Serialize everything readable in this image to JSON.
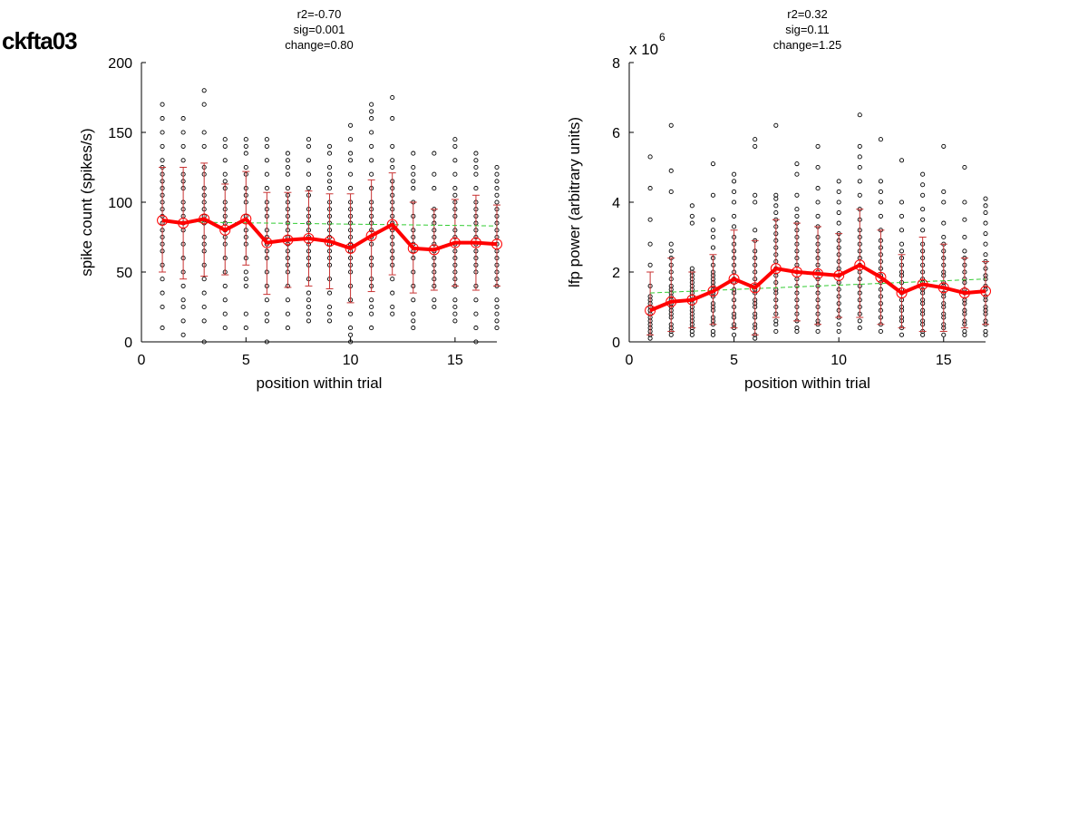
{
  "figure_title": "ckfta03",
  "colors": {
    "mean_line": "#ff0000",
    "errorbar": "#c83232",
    "trend": "#33cc33",
    "points": "#000000"
  },
  "chart_data": [
    {
      "type": "scatter",
      "stats": [
        "r2=-0.70",
        "sig=0.001",
        "change=0.80"
      ],
      "xlabel": "position within trial",
      "ylabel": "spike count (spikes/s)",
      "exponent_label": "",
      "xlim": [
        0,
        17
      ],
      "ylim": [
        0,
        200
      ],
      "xticks": [
        0,
        5,
        10,
        15
      ],
      "yticks": [
        0,
        50,
        100,
        150,
        200
      ],
      "x": [
        1,
        2,
        3,
        4,
        5,
        6,
        7,
        8,
        9,
        10,
        11,
        12,
        13,
        14,
        15,
        16,
        17
      ],
      "mean": [
        87,
        85,
        88,
        80,
        88,
        71,
        73,
        74,
        72,
        67,
        76,
        84,
        67,
        66,
        71,
        71,
        70
      ],
      "err_lo": [
        50,
        45,
        47,
        48,
        55,
        34,
        39,
        40,
        38,
        28,
        36,
        48,
        35,
        37,
        40,
        37,
        40
      ],
      "err_hi": [
        125,
        125,
        128,
        113,
        122,
        107,
        107,
        108,
        106,
        106,
        116,
        121,
        100,
        95,
        102,
        105,
        98
      ],
      "trend": [
        86,
        83
      ],
      "points": [
        [
          10,
          25,
          35,
          45,
          55,
          65,
          70,
          75,
          80,
          85,
          90,
          95,
          100,
          105,
          110,
          115,
          120,
          125,
          130,
          140,
          150,
          160,
          170
        ],
        [
          5,
          15,
          25,
          30,
          40,
          50,
          60,
          70,
          80,
          85,
          90,
          95,
          100,
          110,
          115,
          120,
          130,
          140,
          150,
          160
        ],
        [
          0,
          15,
          25,
          35,
          45,
          55,
          65,
          70,
          75,
          85,
          90,
          95,
          100,
          105,
          110,
          120,
          125,
          140,
          150,
          170,
          180
        ],
        [
          10,
          20,
          30,
          40,
          50,
          60,
          70,
          75,
          80,
          85,
          90,
          95,
          100,
          110,
          115,
          120,
          130,
          140,
          145
        ],
        [
          10,
          20,
          40,
          45,
          50,
          60,
          70,
          75,
          80,
          90,
          100,
          105,
          110,
          120,
          125,
          135,
          140,
          145
        ],
        [
          0,
          15,
          20,
          30,
          40,
          50,
          60,
          65,
          70,
          75,
          80,
          90,
          95,
          100,
          110,
          120,
          130,
          140,
          145
        ],
        [
          10,
          20,
          30,
          40,
          50,
          55,
          60,
          65,
          70,
          75,
          80,
          85,
          90,
          95,
          100,
          105,
          110,
          120,
          125,
          130,
          135
        ],
        [
          15,
          20,
          25,
          30,
          35,
          45,
          55,
          60,
          65,
          70,
          75,
          80,
          85,
          90,
          95,
          105,
          110,
          120,
          130,
          140,
          145
        ],
        [
          15,
          20,
          25,
          35,
          45,
          55,
          60,
          65,
          70,
          75,
          80,
          85,
          90,
          95,
          100,
          110,
          115,
          120,
          125,
          135,
          140
        ],
        [
          0,
          5,
          10,
          20,
          30,
          40,
          50,
          55,
          60,
          65,
          70,
          75,
          80,
          85,
          90,
          95,
          100,
          110,
          120,
          130,
          135,
          145,
          155
        ],
        [
          10,
          20,
          25,
          30,
          40,
          45,
          55,
          60,
          70,
          75,
          80,
          85,
          90,
          95,
          100,
          110,
          120,
          130,
          140,
          150,
          160,
          165,
          170
        ],
        [
          20,
          25,
          35,
          45,
          55,
          60,
          65,
          70,
          75,
          80,
          85,
          90,
          95,
          100,
          105,
          110,
          115,
          125,
          130,
          140,
          160,
          175
        ],
        [
          10,
          15,
          20,
          30,
          40,
          50,
          60,
          65,
          70,
          75,
          80,
          90,
          100,
          110,
          115,
          120,
          125,
          135
        ],
        [
          25,
          30,
          40,
          45,
          50,
          55,
          60,
          65,
          70,
          75,
          80,
          85,
          90,
          95,
          110,
          120,
          135
        ],
        [
          15,
          20,
          25,
          30,
          40,
          45,
          50,
          55,
          60,
          65,
          70,
          75,
          80,
          90,
          95,
          100,
          105,
          110,
          120,
          130,
          140,
          145
        ],
        [
          0,
          10,
          20,
          30,
          40,
          50,
          55,
          60,
          65,
          70,
          75,
          80,
          85,
          90,
          95,
          100,
          110,
          120,
          125,
          130,
          135
        ],
        [
          10,
          15,
          20,
          25,
          30,
          40,
          45,
          50,
          55,
          60,
          65,
          70,
          75,
          80,
          85,
          90,
          95,
          100,
          105,
          110,
          115,
          120,
          125
        ]
      ]
    },
    {
      "type": "scatter",
      "stats": [
        "r2=0.32",
        "sig=0.11",
        "change=1.25"
      ],
      "xlabel": "position within trial",
      "ylabel": "lfp power (arbitrary units)",
      "exponent_label": "x 10",
      "exponent_power": "6",
      "xlim": [
        0,
        17
      ],
      "ylim": [
        0,
        8
      ],
      "xticks": [
        0,
        5,
        10,
        15
      ],
      "yticks": [
        0,
        2,
        4,
        6,
        8
      ],
      "x": [
        1,
        2,
        3,
        4,
        5,
        6,
        7,
        8,
        9,
        10,
        11,
        12,
        13,
        14,
        15,
        16,
        17
      ],
      "mean": [
        0.9,
        1.15,
        1.2,
        1.45,
        1.8,
        1.55,
        2.1,
        2.0,
        1.95,
        1.9,
        2.2,
        1.85,
        1.4,
        1.65,
        1.55,
        1.4,
        1.45
      ],
      "err_lo": [
        0.2,
        0.3,
        0.4,
        0.5,
        0.4,
        0.2,
        0.7,
        0.6,
        0.5,
        0.7,
        0.7,
        0.5,
        0.4,
        0.3,
        0.3,
        0.4,
        0.5
      ],
      "err_hi": [
        2.0,
        2.4,
        2.0,
        2.5,
        3.2,
        2.9,
        3.5,
        3.4,
        3.3,
        3.1,
        3.8,
        3.2,
        2.5,
        3.0,
        2.8,
        2.4,
        2.3
      ],
      "trend": [
        1.4,
        1.8
      ],
      "points": [
        [
          0.1,
          0.2,
          0.3,
          0.4,
          0.5,
          0.6,
          0.7,
          0.8,
          0.9,
          1.0,
          1.1,
          1.2,
          1.3,
          1.6,
          2.2,
          2.8,
          3.5,
          4.4,
          5.3
        ],
        [
          0.2,
          0.3,
          0.4,
          0.5,
          0.7,
          0.8,
          0.9,
          1.0,
          1.1,
          1.2,
          1.3,
          1.4,
          1.5,
          1.6,
          1.8,
          2.0,
          2.2,
          2.4,
          2.6,
          2.8,
          4.3,
          4.9,
          6.2
        ],
        [
          0.2,
          0.3,
          0.4,
          0.5,
          0.6,
          0.7,
          0.8,
          0.9,
          1.0,
          1.1,
          1.2,
          1.3,
          1.4,
          1.5,
          1.6,
          1.7,
          1.8,
          1.9,
          2.0,
          2.1,
          3.4,
          3.6,
          3.9
        ],
        [
          0.2,
          0.3,
          0.5,
          0.6,
          0.7,
          0.9,
          1.0,
          1.1,
          1.3,
          1.4,
          1.5,
          1.6,
          1.7,
          1.8,
          1.9,
          2.0,
          2.2,
          2.4,
          2.7,
          3.0,
          3.2,
          3.5,
          4.2,
          5.1
        ],
        [
          0.2,
          0.4,
          0.5,
          0.7,
          0.8,
          1.0,
          1.2,
          1.4,
          1.5,
          1.7,
          1.8,
          2.0,
          2.2,
          2.4,
          2.6,
          2.8,
          3.0,
          3.3,
          3.6,
          4.0,
          4.3,
          4.6,
          4.8
        ],
        [
          0.1,
          0.2,
          0.4,
          0.5,
          0.7,
          0.8,
          1.0,
          1.1,
          1.2,
          1.4,
          1.5,
          1.6,
          1.8,
          2.0,
          2.2,
          2.4,
          2.6,
          2.9,
          3.2,
          4.0,
          4.2,
          5.6,
          5.8
        ],
        [
          0.3,
          0.5,
          0.6,
          0.8,
          1.0,
          1.2,
          1.4,
          1.5,
          1.7,
          1.9,
          2.1,
          2.3,
          2.5,
          2.7,
          2.9,
          3.1,
          3.3,
          3.5,
          3.7,
          3.9,
          4.1,
          4.2,
          6.2
        ],
        [
          0.3,
          0.4,
          0.6,
          0.8,
          1.0,
          1.2,
          1.4,
          1.6,
          1.8,
          2.0,
          2.2,
          2.4,
          2.6,
          2.8,
          3.0,
          3.2,
          3.4,
          3.6,
          3.8,
          4.2,
          4.8,
          5.1
        ],
        [
          0.3,
          0.5,
          0.6,
          0.8,
          1.0,
          1.2,
          1.4,
          1.6,
          1.8,
          2.0,
          2.2,
          2.4,
          2.6,
          2.8,
          3.0,
          3.3,
          3.6,
          4.0,
          4.4,
          5.0,
          5.6
        ],
        [
          0.3,
          0.5,
          0.7,
          0.9,
          1.1,
          1.3,
          1.5,
          1.7,
          1.9,
          2.1,
          2.3,
          2.5,
          2.7,
          2.9,
          3.1,
          3.4,
          3.7,
          4.0,
          4.3,
          4.6
        ],
        [
          0.4,
          0.6,
          0.8,
          1.0,
          1.2,
          1.4,
          1.6,
          1.8,
          2.0,
          2.2,
          2.4,
          2.6,
          2.8,
          3.0,
          3.2,
          3.5,
          3.8,
          4.2,
          4.6,
          5.0,
          5.3,
          5.6,
          6.5
        ],
        [
          0.3,
          0.5,
          0.7,
          0.9,
          1.1,
          1.3,
          1.5,
          1.7,
          1.9,
          2.1,
          2.3,
          2.5,
          2.7,
          2.9,
          3.2,
          3.6,
          4.0,
          4.3,
          4.6,
          5.8
        ],
        [
          0.2,
          0.4,
          0.6,
          0.7,
          0.9,
          1.0,
          1.2,
          1.4,
          1.5,
          1.7,
          1.9,
          2.0,
          2.2,
          2.4,
          2.6,
          2.8,
          3.2,
          3.6,
          4.0,
          5.2
        ],
        [
          0.2,
          0.3,
          0.5,
          0.6,
          0.8,
          0.9,
          1.1,
          1.2,
          1.4,
          1.5,
          1.7,
          1.8,
          2.0,
          2.2,
          2.4,
          2.6,
          2.8,
          3.2,
          3.5,
          3.8,
          4.2,
          4.5,
          4.8
        ],
        [
          0.2,
          0.4,
          0.5,
          0.7,
          0.8,
          1.0,
          1.1,
          1.3,
          1.4,
          1.6,
          1.7,
          1.9,
          2.0,
          2.2,
          2.4,
          2.6,
          2.8,
          3.0,
          3.4,
          4.0,
          4.3,
          5.6
        ],
        [
          0.2,
          0.3,
          0.5,
          0.6,
          0.8,
          0.9,
          1.1,
          1.2,
          1.4,
          1.5,
          1.7,
          1.8,
          2.0,
          2.2,
          2.4,
          2.6,
          3.0,
          3.5,
          4.0,
          5.0
        ],
        [
          0.2,
          0.3,
          0.5,
          0.6,
          0.8,
          0.9,
          1.0,
          1.2,
          1.3,
          1.5,
          1.6,
          1.8,
          1.9,
          2.1,
          2.3,
          2.5,
          2.8,
          3.1,
          3.4,
          3.7,
          3.9,
          4.1
        ]
      ]
    }
  ]
}
